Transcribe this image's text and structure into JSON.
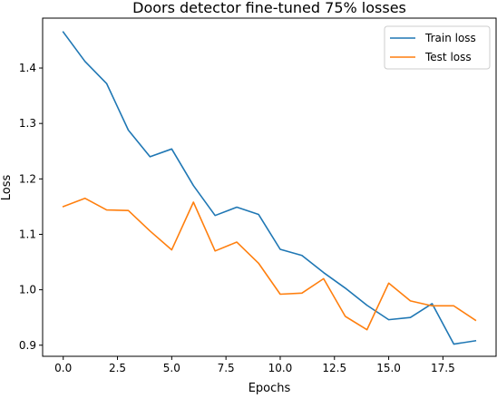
{
  "chart_data": {
    "type": "line",
    "title": "Doors detector fine-tuned 75% losses",
    "xlabel": "Epochs",
    "ylabel": "Loss",
    "xlim": [
      -0.95,
      19.95
    ],
    "ylim": [
      0.88,
      1.49
    ],
    "xticks": [
      0.0,
      2.5,
      5.0,
      7.5,
      10.0,
      12.5,
      15.0,
      17.5
    ],
    "xtick_labels": [
      "0.0",
      "2.5",
      "5.0",
      "7.5",
      "10.0",
      "12.5",
      "15.0",
      "17.5"
    ],
    "yticks": [
      0.9,
      1.0,
      1.1,
      1.2,
      1.3,
      1.4
    ],
    "ytick_labels": [
      "0.9",
      "1.0",
      "1.1",
      "1.2",
      "1.3",
      "1.4"
    ],
    "grid": false,
    "legend_position": "top-right",
    "x": [
      0,
      1,
      2,
      3,
      4,
      5,
      6,
      7,
      8,
      9,
      10,
      11,
      12,
      13,
      14,
      15,
      16,
      17,
      18,
      19
    ],
    "series": [
      {
        "name": "Train loss",
        "color": "#1f77b4",
        "values": [
          1.465,
          1.412,
          1.372,
          1.288,
          1.24,
          1.254,
          1.188,
          1.134,
          1.149,
          1.136,
          1.073,
          1.062,
          1.031,
          1.003,
          0.972,
          0.946,
          0.95,
          0.975,
          0.902,
          0.908
        ]
      },
      {
        "name": "Test loss",
        "color": "#ff7f0e",
        "values": [
          1.15,
          1.165,
          1.144,
          1.143,
          1.106,
          1.072,
          1.158,
          1.07,
          1.086,
          1.048,
          0.992,
          0.994,
          1.02,
          0.952,
          0.928,
          1.012,
          0.98,
          0.971,
          0.971,
          0.945
        ]
      }
    ]
  }
}
